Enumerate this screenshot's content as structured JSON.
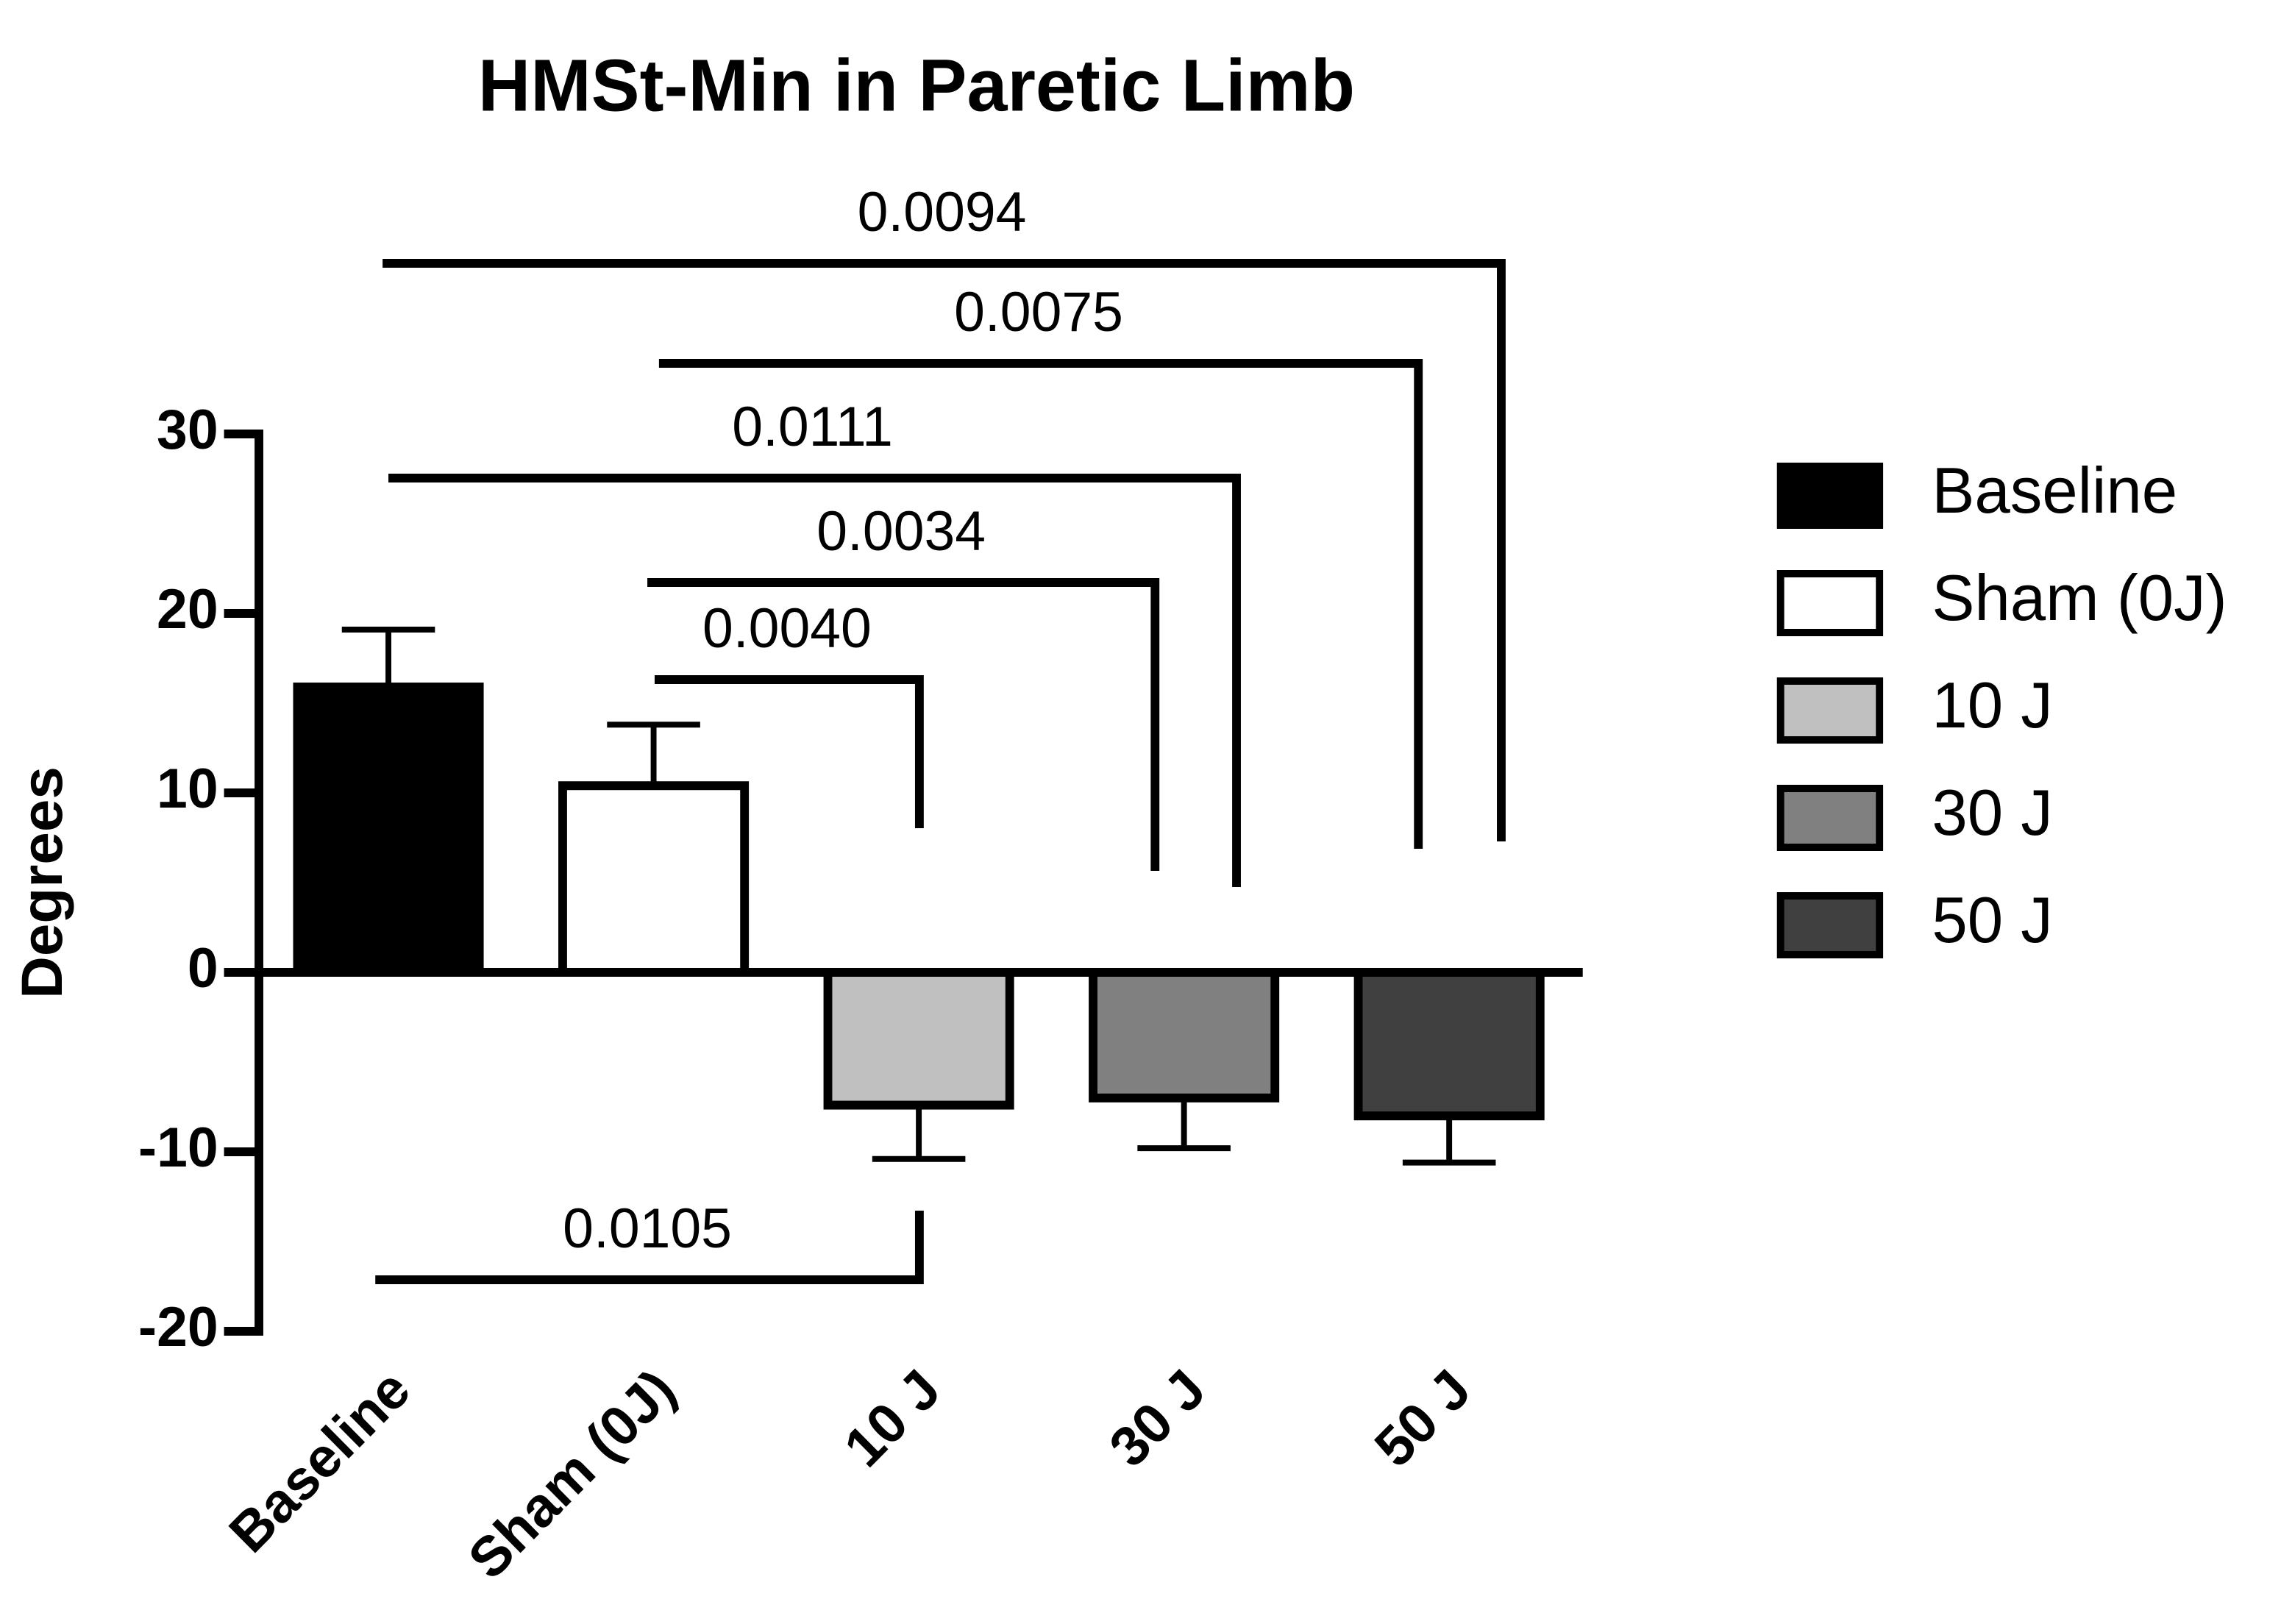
{
  "chart_data": {
    "type": "bar",
    "title": "HMSt-Min in Paretic Limb",
    "y_label": "Degrees",
    "categories": [
      "Baseline",
      "Sham (0J)",
      "10 J",
      "30 J",
      "50 J"
    ],
    "values": [
      15.9,
      10.4,
      -7.4,
      -7.0,
      -8.0
    ],
    "errors": [
      3.2,
      3.4,
      3.0,
      2.8,
      2.6
    ],
    "colors": [
      "#000000",
      "#ffffff",
      "#c0c0c0",
      "#808080",
      "#404040"
    ],
    "ylim": [
      -20,
      30
    ],
    "yticks": [
      -20,
      -10,
      0,
      10,
      20,
      30
    ],
    "legend": "right",
    "annotations": [
      {
        "text": "0.0094",
        "from": "Baseline",
        "to": "50 J"
      },
      {
        "text": "0.0075",
        "from": "Sham (0J)",
        "to": "50 J"
      },
      {
        "text": "0.0111",
        "from": "Baseline",
        "to": "30 J"
      },
      {
        "text": "0.0034",
        "from": "Sham (0J)",
        "to": "30 J"
      },
      {
        "text": "0.0040",
        "from": "Sham (0J)",
        "to": "10 J"
      },
      {
        "text": "0.0105",
        "from": "Baseline",
        "to": "10 J"
      }
    ]
  }
}
